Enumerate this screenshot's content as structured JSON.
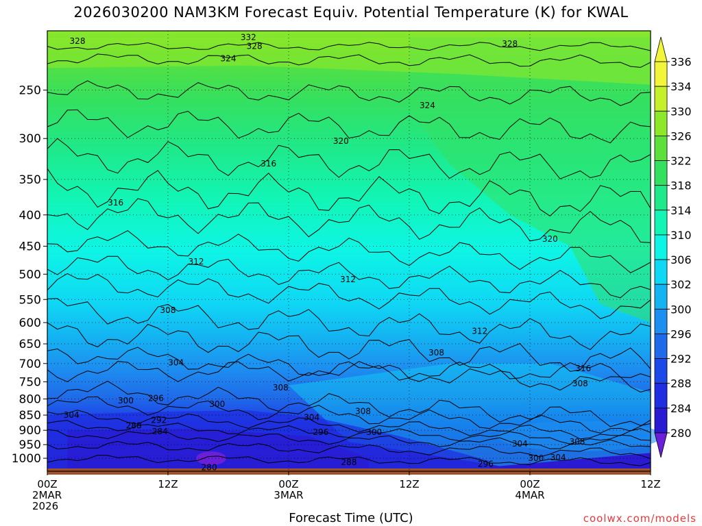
{
  "chart_data": {
    "type": "heatmap",
    "title": "2026030200 NAM3KM Forecast Equiv. Potential Temperature (K) for KWAL",
    "xlabel": "Forecast Time (UTC)",
    "ylabel": "",
    "x_ticks": [
      {
        "value": 0,
        "lines": [
          "00Z",
          "2MAR",
          "2026"
        ]
      },
      {
        "value": 12,
        "lines": [
          "12Z"
        ]
      },
      {
        "value": 24,
        "lines": [
          "00Z",
          "3MAR"
        ]
      },
      {
        "value": 36,
        "lines": [
          "12Z"
        ]
      },
      {
        "value": 48,
        "lines": [
          "00Z",
          "4MAR"
        ]
      },
      {
        "value": 60,
        "lines": [
          "12Z"
        ]
      }
    ],
    "x_range_hours": [
      0,
      60
    ],
    "y_axis": "pressure (hPa), log scale, inverted",
    "y_ticks": [
      250,
      300,
      350,
      400,
      450,
      500,
      550,
      600,
      650,
      700,
      750,
      800,
      850,
      900,
      950,
      1000
    ],
    "y_range": [
      200,
      1050
    ],
    "grid": "dotted at each tick",
    "colorbar": {
      "levels": [
        280,
        284,
        288,
        292,
        296,
        300,
        302,
        306,
        310,
        314,
        318,
        322,
        326,
        330,
        334,
        336
      ],
      "label_levels": [
        280,
        284,
        288,
        292,
        296,
        300,
        302,
        306,
        310,
        314,
        318,
        322,
        326,
        330,
        334,
        336
      ],
      "colors": [
        "#6a1fd8",
        "#2a1ad2",
        "#1f2ee0",
        "#1d49e8",
        "#1f6ae8",
        "#1d8ff0",
        "#14b3f2",
        "#0fd8f5",
        "#0ef5e5",
        "#12f5b4",
        "#1fe98a",
        "#34e060",
        "#5de03c",
        "#8ee82a",
        "#c6f02a",
        "#f2f53a"
      ],
      "extend": "both"
    },
    "contour_labels": [
      {
        "text": "328",
        "x": 3.0,
        "p": 208
      },
      {
        "text": "332",
        "x": 20.0,
        "p": 205
      },
      {
        "text": "328",
        "x": 20.6,
        "p": 212
      },
      {
        "text": "328",
        "x": 46.0,
        "p": 210
      },
      {
        "text": "324",
        "x": 18.0,
        "p": 222
      },
      {
        "text": "324",
        "x": 37.8,
        "p": 265
      },
      {
        "text": "320",
        "x": 29.2,
        "p": 303
      },
      {
        "text": "316",
        "x": 22.0,
        "p": 330
      },
      {
        "text": "316",
        "x": 6.8,
        "p": 382
      },
      {
        "text": "320",
        "x": 50.0,
        "p": 438
      },
      {
        "text": "312",
        "x": 14.8,
        "p": 477
      },
      {
        "text": "312",
        "x": 29.9,
        "p": 510
      },
      {
        "text": "308",
        "x": 12.0,
        "p": 573
      },
      {
        "text": "312",
        "x": 43.0,
        "p": 620
      },
      {
        "text": "308",
        "x": 38.7,
        "p": 672
      },
      {
        "text": "304",
        "x": 12.8,
        "p": 698
      },
      {
        "text": "316",
        "x": 53.3,
        "p": 713
      },
      {
        "text": "308",
        "x": 53.0,
        "p": 755
      },
      {
        "text": "308",
        "x": 23.2,
        "p": 767
      },
      {
        "text": "300",
        "x": 7.8,
        "p": 805
      },
      {
        "text": "296",
        "x": 10.8,
        "p": 798
      },
      {
        "text": "300",
        "x": 16.9,
        "p": 815
      },
      {
        "text": "308",
        "x": 31.4,
        "p": 838
      },
      {
        "text": "304",
        "x": 2.4,
        "p": 850
      },
      {
        "text": "304",
        "x": 26.3,
        "p": 858
      },
      {
        "text": "292",
        "x": 11.1,
        "p": 866
      },
      {
        "text": "288",
        "x": 8.6,
        "p": 884
      },
      {
        "text": "284",
        "x": 11.2,
        "p": 904
      },
      {
        "text": "296",
        "x": 27.2,
        "p": 907
      },
      {
        "text": "300",
        "x": 32.5,
        "p": 907
      },
      {
        "text": "304",
        "x": 47.0,
        "p": 947
      },
      {
        "text": "308",
        "x": 52.7,
        "p": 940
      },
      {
        "text": "300",
        "x": 48.6,
        "p": 1000
      },
      {
        "text": "304",
        "x": 50.8,
        "p": 997
      },
      {
        "text": "288",
        "x": 30.0,
        "p": 1015
      },
      {
        "text": "296",
        "x": 43.6,
        "p": 1022
      },
      {
        "text": "280",
        "x": 16.1,
        "p": 1035
      }
    ]
  },
  "credit": "coolwx.com/models",
  "colors": {
    "ground": "#a0522d",
    "credit": "#e8383a"
  }
}
